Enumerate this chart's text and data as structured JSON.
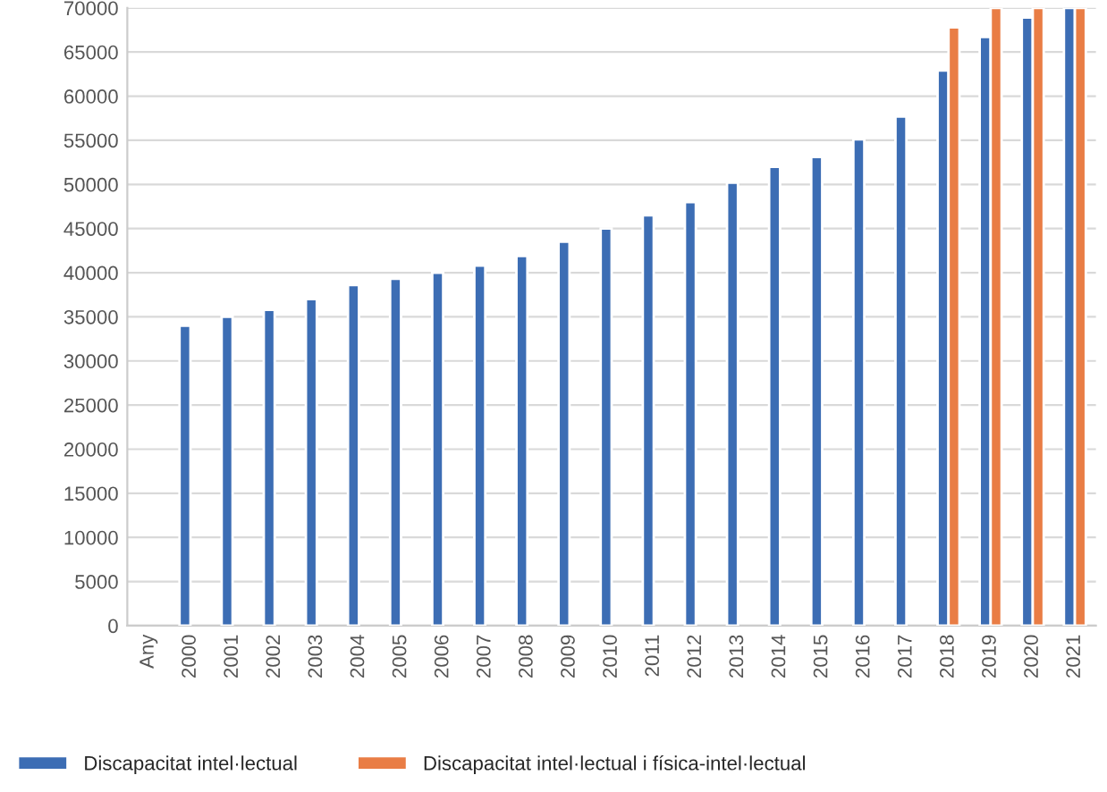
{
  "chart_data": {
    "type": "bar",
    "categories": [
      "Any",
      "2000",
      "2001",
      "2002",
      "2003",
      "2004",
      "2005",
      "2006",
      "2007",
      "2008",
      "2009",
      "2010",
      "2011",
      "2012",
      "2013",
      "2014",
      "2015",
      "2016",
      "2017",
      "2018",
      "2019",
      "2020",
      "2021"
    ],
    "series": [
      {
        "name": "Discapacitat intel·lectual",
        "color": "#3c6db4",
        "values": [
          null,
          34000,
          35000,
          35800,
          37000,
          38600,
          39300,
          40000,
          40800,
          41900,
          43500,
          45000,
          46500,
          48000,
          50200,
          52000,
          53100,
          55100,
          57700,
          62900,
          66700,
          68900,
          70000
        ]
      },
      {
        "name": "Discapacitat intel·lectual i física-intel·lectual",
        "color": "#e97d45",
        "values": [
          null,
          null,
          null,
          null,
          null,
          null,
          null,
          null,
          null,
          null,
          null,
          null,
          null,
          null,
          null,
          null,
          null,
          null,
          null,
          67800,
          70000,
          70000,
          70000
        ]
      }
    ],
    "ylim": [
      0,
      70000
    ],
    "yticks": [
      0,
      5000,
      10000,
      15000,
      20000,
      25000,
      30000,
      35000,
      40000,
      45000,
      50000,
      55000,
      60000,
      65000,
      70000
    ],
    "grid": "y",
    "legend": "bottom"
  }
}
